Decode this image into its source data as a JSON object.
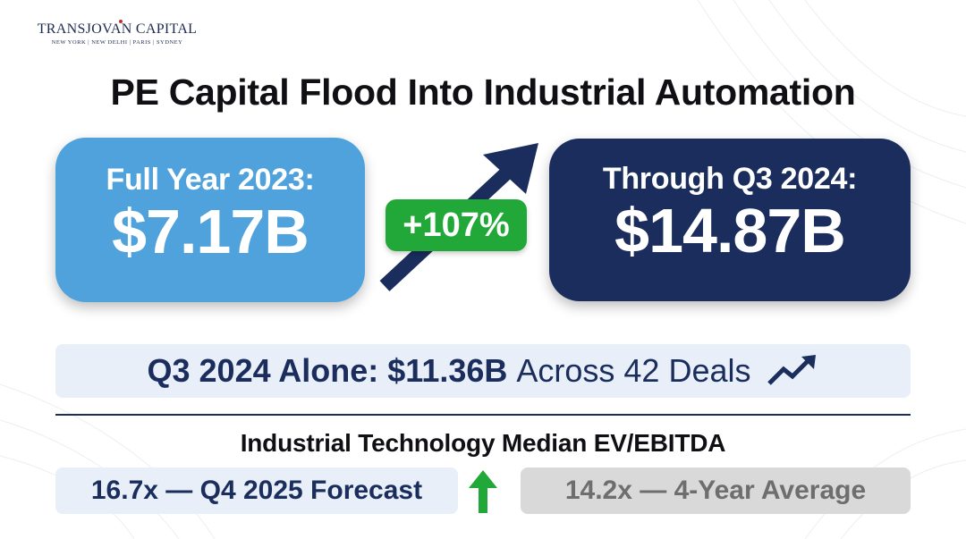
{
  "logo": {
    "name": "TRANSJOVAN CAPITAL",
    "locations": "NEW YORK | NEW DELHI | PARIS | SYDNEY"
  },
  "title": "PE Capital Flood Into Industrial Automation",
  "left_card": {
    "label": "Full Year 2023:",
    "value": "$7.17B"
  },
  "right_card": {
    "label": "Through Q3 2024:",
    "value": "$14.87B"
  },
  "growth_badge": "+107%",
  "q3_summary": {
    "highlight": "Q3 2024 Alone: $11.36B",
    "rest": "Across 42 Deals"
  },
  "subheading": "Industrial Technology Median EV/EBITDA",
  "forecast_pill": "16.7x — Q4 2025 Forecast",
  "average_pill": "14.2x — 4-Year Average",
  "icons": {
    "trend": "trend-up-icon",
    "up": "arrow-up-icon",
    "growth": "growth-arrow-icon"
  },
  "colors": {
    "light_blue": "#4fa2dc",
    "navy": "#1a2d5c",
    "green": "#21a838",
    "pale_blue": "#e8eff8",
    "gray": "#d9d9d9"
  }
}
